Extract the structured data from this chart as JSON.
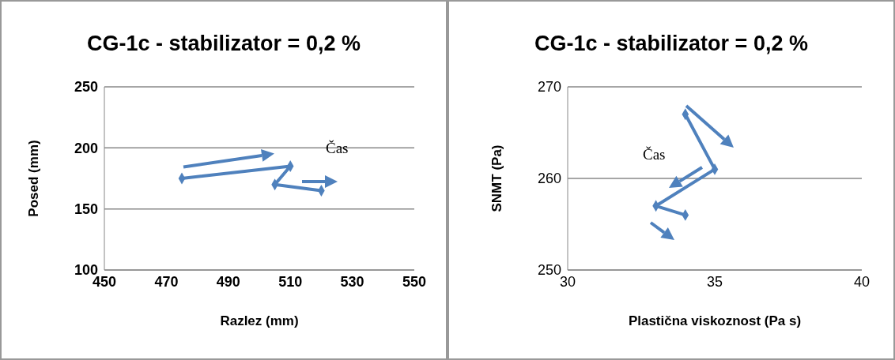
{
  "chart_data": [
    {
      "type": "line",
      "title": "CG-1c - stabilizator = 0,2 %",
      "xlabel": "Razlez (mm)",
      "ylabel": "Posed (mm)",
      "series": [
        {
          "color": "#4f81bd",
          "x": [
            475,
            510,
            505,
            520
          ],
          "values": [
            175,
            185,
            170,
            165
          ]
        }
      ],
      "xlim": [
        450,
        550
      ],
      "xticks": [
        450,
        470,
        490,
        510,
        530,
        550
      ],
      "ylim": [
        100,
        250
      ],
      "yticks": [
        100,
        150,
        200,
        250
      ],
      "grid": "y",
      "marker": "diamond",
      "annotations": [
        "Čas"
      ]
    },
    {
      "type": "line",
      "title": "CG-1c - stabilizator = 0,2 %",
      "xlabel": "Plastična viskoznost (Pa s)",
      "ylabel": "SNMT (Pa)",
      "series": [
        {
          "color": "#4f81bd",
          "x": [
            34,
            35,
            33,
            34
          ],
          "values": [
            267,
            261,
            257,
            256
          ]
        }
      ],
      "xlim": [
        30,
        40
      ],
      "xticks": [
        30,
        35,
        40
      ],
      "ylim": [
        250,
        270
      ],
      "yticks": [
        250,
        260,
        270
      ],
      "grid": "y",
      "marker": "diamond",
      "annotations": [
        "Čas"
      ]
    }
  ]
}
